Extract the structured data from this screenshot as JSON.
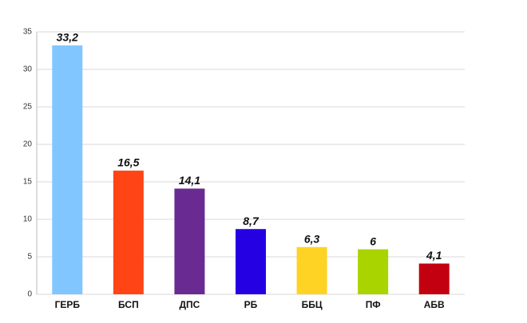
{
  "chart_data": {
    "type": "bar",
    "categories": [
      "ГЕРБ",
      "БСП",
      "ДПС",
      "РБ",
      "ББЦ",
      "ПФ",
      "АБВ"
    ],
    "values": [
      33.2,
      16.5,
      14.1,
      8.7,
      6.3,
      6,
      4.1
    ],
    "value_labels": [
      "33,2",
      "16,5",
      "14,1",
      "8,7",
      "6,3",
      "6",
      "4,1"
    ],
    "colors": [
      "#82c6ff",
      "#ff4516",
      "#692a92",
      "#2400e2",
      "#ffd324",
      "#a9d400",
      "#c3000f"
    ],
    "ylim": [
      0,
      35
    ],
    "yticks": [
      0,
      5,
      10,
      15,
      20,
      25,
      30,
      35
    ],
    "grid": true
  }
}
